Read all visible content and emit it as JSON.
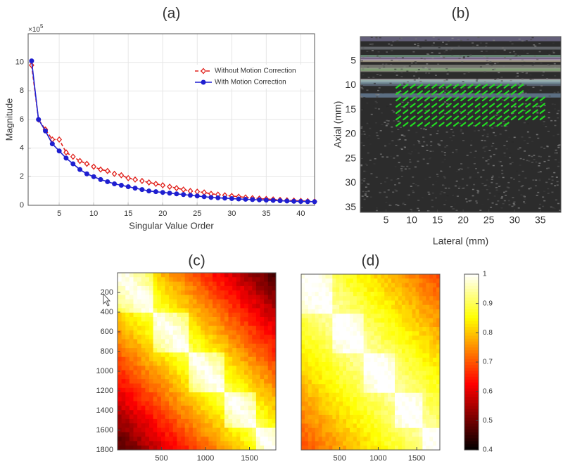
{
  "chart_data": [
    {
      "type": "line",
      "title": "(a)",
      "xlabel": "Singular Value Order",
      "ylabel": "Magnitude",
      "y_scale_base": "×10",
      "y_scale_exponent": "5",
      "x": [
        1,
        2,
        3,
        4,
        5,
        6,
        7,
        8,
        9,
        10,
        11,
        12,
        13,
        14,
        15,
        16,
        17,
        18,
        19,
        20,
        21,
        22,
        23,
        24,
        25,
        26,
        27,
        28,
        29,
        30,
        31,
        32,
        33,
        34,
        35,
        36,
        37,
        38,
        39,
        40,
        41,
        42
      ],
      "series": [
        {
          "name": "Without Motion Correction",
          "color": "#e0201b",
          "marker": "diamond",
          "linestyle": "dashed",
          "values": [
            9.8,
            6.0,
            5.3,
            4.6,
            4.6,
            3.7,
            3.4,
            3.1,
            2.9,
            2.7,
            2.5,
            2.4,
            2.2,
            2.1,
            1.9,
            1.8,
            1.7,
            1.6,
            1.5,
            1.4,
            1.3,
            1.2,
            1.1,
            1.0,
            0.95,
            0.9,
            0.8,
            0.75,
            0.7,
            0.65,
            0.6,
            0.55,
            0.5,
            0.47,
            0.44,
            0.41,
            0.38,
            0.35,
            0.33,
            0.31,
            0.29,
            0.27
          ]
        },
        {
          "name": "With Motion Correction",
          "color": "#1f1fd0",
          "marker": "circle",
          "linestyle": "solid",
          "values": [
            10.1,
            6.0,
            5.2,
            4.3,
            3.8,
            3.3,
            2.9,
            2.5,
            2.2,
            2.0,
            1.8,
            1.65,
            1.5,
            1.4,
            1.3,
            1.2,
            1.1,
            1.0,
            0.95,
            0.9,
            0.85,
            0.8,
            0.75,
            0.7,
            0.65,
            0.6,
            0.55,
            0.52,
            0.5,
            0.47,
            0.44,
            0.42,
            0.4,
            0.38,
            0.36,
            0.34,
            0.32,
            0.3,
            0.28,
            0.27,
            0.26,
            0.25
          ]
        }
      ],
      "xlim": [
        0.5,
        42
      ],
      "ylim": [
        0,
        12
      ],
      "xticks": [
        5,
        10,
        15,
        20,
        25,
        30,
        35,
        40
      ],
      "yticks": [
        0,
        2,
        4,
        6,
        8,
        10
      ],
      "grid": true,
      "legend": "upper right"
    },
    {
      "type": "image",
      "title": "(b)",
      "xlabel": "Lateral (mm)",
      "ylabel": "Axial (mm)",
      "xlim": [
        0,
        39
      ],
      "ylim": [
        0,
        36
      ],
      "xticks": [
        5,
        10,
        15,
        20,
        25,
        30,
        35
      ],
      "yticks": [
        5,
        10,
        15,
        20,
        25,
        30,
        35
      ],
      "y_inverted": true
    },
    {
      "type": "heatmap",
      "title": "(c)",
      "colormap": "hot",
      "xlim": [
        0,
        1800
      ],
      "ylim": [
        0,
        1800
      ],
      "xticks": [
        500,
        1000,
        1500
      ],
      "yticks": [
        200,
        400,
        600,
        800,
        1000,
        1200,
        1400,
        1600,
        1800
      ],
      "y_inverted": true
    },
    {
      "type": "heatmap",
      "title": "(d)",
      "colormap": "hot",
      "xlim": [
        0,
        1800
      ],
      "ylim": [
        0,
        1800
      ],
      "xticks": [
        500,
        1000,
        1500
      ],
      "yticks": [],
      "y_inverted": true,
      "colorbar": {
        "lim": [
          0.4,
          1
        ],
        "ticks": [
          0.4,
          0.5,
          0.6,
          0.7,
          0.8,
          0.9,
          1
        ]
      }
    }
  ]
}
